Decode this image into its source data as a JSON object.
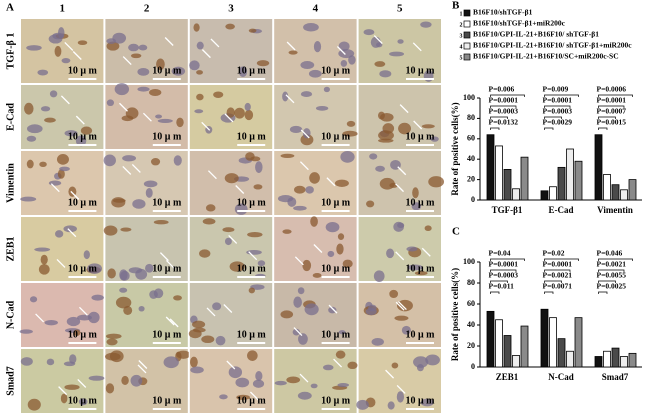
{
  "panel_a": {
    "label": "A",
    "columns": [
      "1",
      "2",
      "3",
      "4",
      "5"
    ],
    "rows": [
      "TGF-β 1",
      "E-Cad",
      "Vimentin",
      "ZEB1",
      "N-Cad",
      "Smad7"
    ],
    "scale_bar": "10 μ m"
  },
  "chart_data": [
    {
      "type": "bar",
      "panel": "B",
      "y_label": "Rate of positive cells(%)",
      "categories": [
        "TGF-β1",
        "E-Cad",
        "Vimentin"
      ],
      "series": [
        {
          "number": "1",
          "name": "B16F10/shTGF-β1",
          "color": "#111111",
          "values": [
            64,
            9,
            64
          ]
        },
        {
          "number": "2",
          "name": "B16F10/shTGF-β1+miR200c",
          "color": "#ffffff",
          "values": [
            53,
            13,
            25
          ]
        },
        {
          "number": "3",
          "name": "B16F10/GPI-IL-21+B16F10/ shTGF-β1",
          "color": "#4a4a4a",
          "values": [
            30,
            32,
            15
          ]
        },
        {
          "number": "4",
          "name": "B16F10/GPI-IL-21+B16F10/ shTGF-β1+miR200c",
          "color": "#eeeeee",
          "values": [
            11,
            50,
            10
          ]
        },
        {
          "number": "5",
          "name": "B16F10/GPI-IL-21+B16F10/SC+miR200c-SC",
          "color": "#8a8a8a",
          "values": [
            42,
            38,
            20
          ]
        }
      ],
      "ylim": [
        0,
        100
      ],
      "yticks": [
        0,
        20,
        40,
        60,
        80,
        100
      ],
      "annotations": [
        [
          "P=0.006",
          "P=0.0001",
          "P=0.0003",
          "P=0.0132"
        ],
        [
          "P=0.009",
          "P=0.0001",
          "P=0.0003",
          "P=0.0029"
        ],
        [
          "P=0.0006",
          "P=0.0001",
          "P=0.0007",
          "P=0.0015"
        ]
      ]
    },
    {
      "type": "bar",
      "panel": "C",
      "y_label": "Rate of positive cells(%)",
      "categories": [
        "ZEB1",
        "N-Cad",
        "Smad7"
      ],
      "series": [
        {
          "color": "#111111",
          "values": [
            53,
            55,
            10
          ]
        },
        {
          "color": "#ffffff",
          "values": [
            45,
            47,
            15
          ]
        },
        {
          "color": "#4a4a4a",
          "values": [
            30,
            27,
            18
          ]
        },
        {
          "color": "#eeeeee",
          "values": [
            11,
            15,
            10
          ]
        },
        {
          "color": "#8a8a8a",
          "values": [
            39,
            47,
            13
          ]
        }
      ],
      "ylim": [
        0,
        100
      ],
      "yticks": [
        0,
        20,
        40,
        60,
        80,
        100
      ],
      "annotations": [
        [
          "P=0.04",
          "P=0.0001",
          "P=0.0003",
          "P=0.011"
        ],
        [
          "P=0.02",
          "P=0.0001",
          "P=0.0021",
          "P=0.0071"
        ],
        [
          "P=0.046",
          "P=0.0021",
          "P=0.0055",
          "P=0.0025"
        ]
      ]
    }
  ]
}
